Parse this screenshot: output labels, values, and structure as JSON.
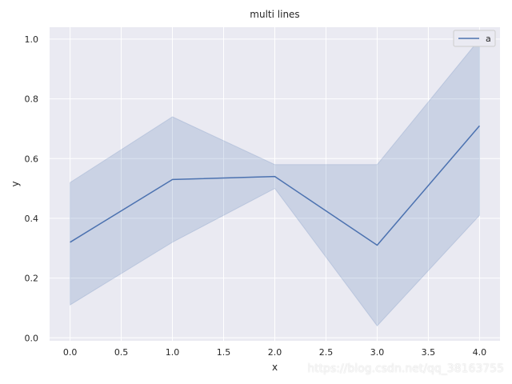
{
  "chart_data": {
    "type": "line",
    "title": "multi lines",
    "xlabel": "x",
    "ylabel": "y",
    "xlim": [
      -0.2,
      4.2
    ],
    "ylim": [
      -0.01,
      1.04
    ],
    "xticks": [
      0.0,
      0.5,
      1.0,
      1.5,
      2.0,
      2.5,
      3.0,
      3.5,
      4.0
    ],
    "xtick_labels": [
      "0.0",
      "0.5",
      "1.0",
      "1.5",
      "2.0",
      "2.5",
      "3.0",
      "3.5",
      "4.0"
    ],
    "yticks": [
      0.0,
      0.2,
      0.4,
      0.6,
      0.8,
      1.0
    ],
    "ytick_labels": [
      "0.0",
      "0.2",
      "0.4",
      "0.6",
      "0.8",
      "1.0"
    ],
    "grid": true,
    "legend_position": "top-right",
    "series": [
      {
        "name": "a",
        "color": "#4c72b0",
        "x": [
          0,
          1,
          2,
          3,
          4
        ],
        "y": [
          0.32,
          0.53,
          0.54,
          0.31,
          0.71
        ],
        "ci_lower": [
          0.11,
          0.32,
          0.5,
          0.04,
          0.41
        ],
        "ci_upper": [
          0.52,
          0.74,
          0.58,
          0.58,
          1.0
        ]
      }
    ]
  },
  "watermark": "https://blog.csdn.net/qq_38163755"
}
